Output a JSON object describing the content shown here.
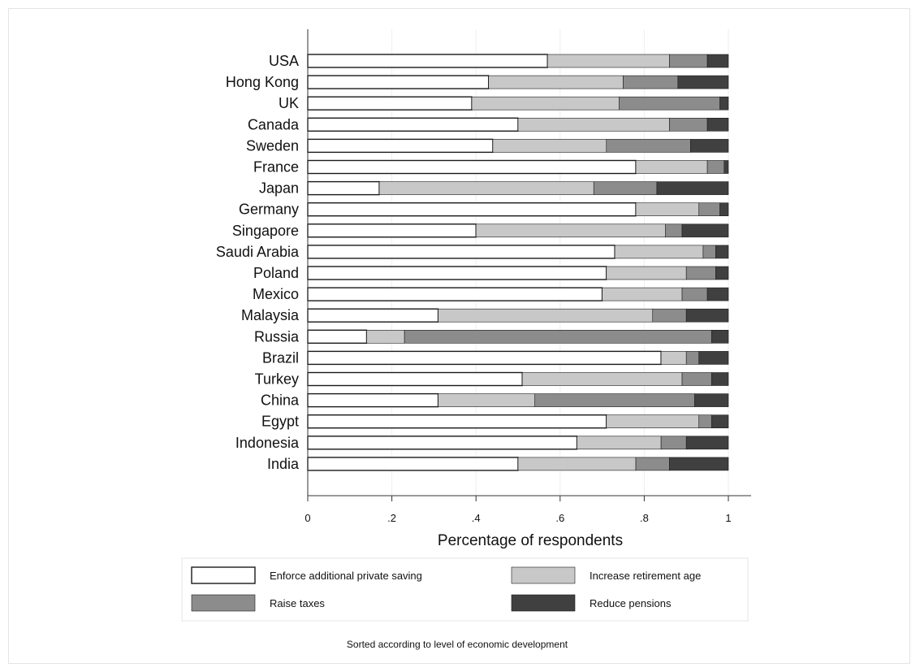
{
  "chart_data": {
    "type": "bar",
    "orientation": "horizontal",
    "stacked": true,
    "xlabel": "Percentage of respondents",
    "xlim": [
      0,
      1
    ],
    "xticks": [
      "0",
      ".2",
      ".4",
      ".6",
      ".8",
      "1"
    ],
    "xtick_values": [
      0,
      0.2,
      0.4,
      0.6,
      0.8,
      1
    ],
    "grid": true,
    "legend_position": "bottom",
    "note": "Sorted according to level of economic development",
    "categories": [
      "USA",
      "Hong Kong",
      "UK",
      "Canada",
      "Sweden",
      "France",
      "Japan",
      "Germany",
      "Singapore",
      "Saudi Arabia",
      "Poland",
      "Mexico",
      "Malaysia",
      "Russia",
      "Brazil",
      "Turkey",
      "China",
      "Egypt",
      "Indonesia",
      "India"
    ],
    "series": [
      {
        "name": "Enforce additional private saving",
        "color": "#ffffff",
        "values": [
          0.57,
          0.43,
          0.39,
          0.5,
          0.44,
          0.78,
          0.17,
          0.78,
          0.4,
          0.73,
          0.71,
          0.7,
          0.31,
          0.14,
          0.84,
          0.51,
          0.31,
          0.71,
          0.64,
          0.5
        ]
      },
      {
        "name": "Increase retirement age",
        "color": "#c8c8c8",
        "values": [
          0.29,
          0.32,
          0.35,
          0.36,
          0.27,
          0.17,
          0.51,
          0.15,
          0.45,
          0.21,
          0.19,
          0.19,
          0.51,
          0.09,
          0.06,
          0.38,
          0.23,
          0.22,
          0.2,
          0.28
        ]
      },
      {
        "name": "Raise taxes",
        "color": "#8c8c8c",
        "values": [
          0.09,
          0.13,
          0.24,
          0.09,
          0.2,
          0.04,
          0.15,
          0.05,
          0.04,
          0.03,
          0.07,
          0.06,
          0.08,
          0.73,
          0.03,
          0.07,
          0.38,
          0.03,
          0.06,
          0.08
        ]
      },
      {
        "name": "Reduce pensions",
        "color": "#404040",
        "values": [
          0.05,
          0.12,
          0.02,
          0.05,
          0.09,
          0.01,
          0.17,
          0.02,
          0.11,
          0.03,
          0.03,
          0.05,
          0.1,
          0.04,
          0.07,
          0.04,
          0.08,
          0.04,
          0.1,
          0.14
        ]
      }
    ]
  }
}
